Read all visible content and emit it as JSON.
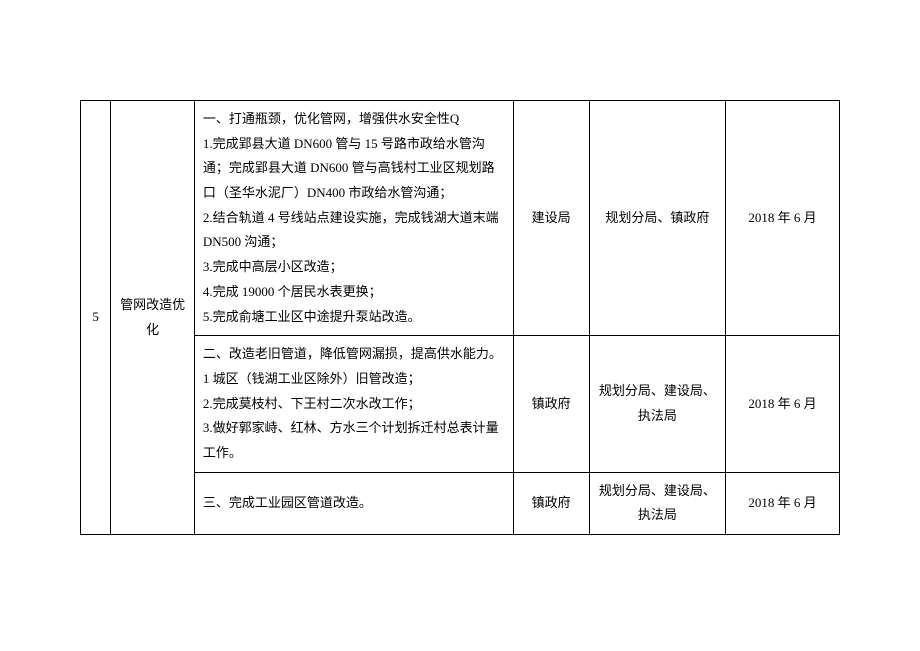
{
  "table": {
    "row_index": "5",
    "row_name": "管网改造优化",
    "sub_rows": [
      {
        "desc": "一、打通瓶颈，优化管网，增强供水安全性Q\n1.完成郢县大道 DN600 管与 15 号路市政给水管沟通；完成郢县大道 DN600 管与高钱村工业区规划路口（圣华水泥厂）DN400 市政给水管沟通；\n2.结合轨道 4 号线站点建设实施，完成钱湖大道末端 DN500 沟通；\n3.完成中高层小区改造；\n4.完成 19000 个居民水表更换；\n5.完成俞塘工业区中途提升泵站改造。",
        "dept1": "建设局",
        "dept2": "规划分局、镇政府",
        "date": "2018 年 6 月"
      },
      {
        "desc": "二、改造老旧管道，降低管网漏损，提高供水能力。\n1 城区（钱湖工业区除外）旧管改造；\n2.完成莫枝村、下王村二次水改工作；\n3.做好郭家峙、红林、方水三个计划拆迁村总表计量工作。",
        "dept1": "镇政府",
        "dept2": "规划分局、建设局、执法局",
        "date": "2018 年 6 月"
      },
      {
        "desc": "三、完成工业园区管道改造。",
        "dept1": "镇政府",
        "dept2": "规划分局、建设局、执法局",
        "date": "2018 年 6 月"
      }
    ]
  },
  "style": {
    "background_color": "#ffffff",
    "border_color": "#000000",
    "text_color": "#000000",
    "font_size": 13,
    "line_height": 1.9
  }
}
